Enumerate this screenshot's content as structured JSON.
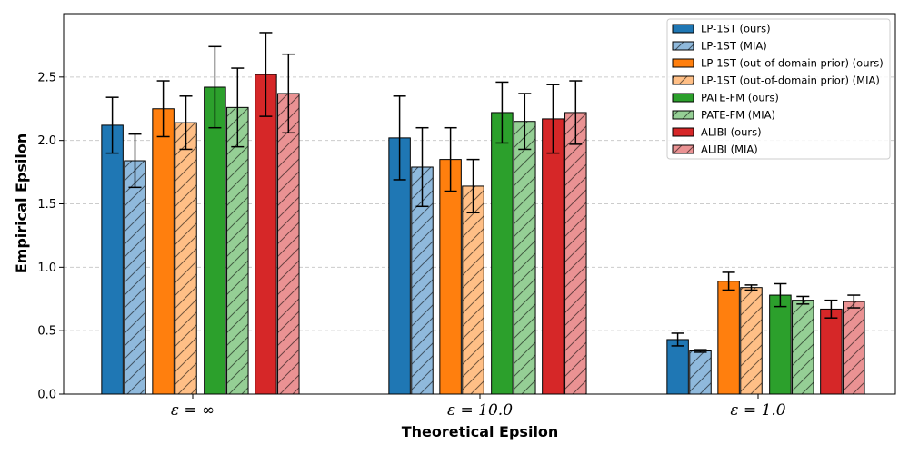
{
  "chart_data": {
    "type": "bar",
    "title": "",
    "xlabel": "Theoretical Epsilon",
    "ylabel": "Empirical Epsilon",
    "categories": [
      "ε = ∞",
      "ε = 10.0",
      "ε = 1.0"
    ],
    "ylim": [
      0,
      3.0
    ],
    "yticks": [
      0.0,
      0.5,
      1.0,
      1.5,
      2.0,
      2.5
    ],
    "ytick_labels": [
      "0.0",
      "0.5",
      "1.0",
      "1.5",
      "2.0",
      "2.5"
    ],
    "grid": true,
    "legend_position": "top-right",
    "series": [
      {
        "name": "LP-1ST (ours)",
        "color": "#1f77b4",
        "hatch": false,
        "values": [
          2.12,
          2.02,
          0.43
        ],
        "errors": [
          0.22,
          0.33,
          0.05
        ]
      },
      {
        "name": "LP-1ST (MIA)",
        "color": "#8fb9dc",
        "hatch": true,
        "values": [
          1.84,
          1.79,
          0.34
        ],
        "errors": [
          0.21,
          0.31,
          0.01
        ]
      },
      {
        "name": "LP-1ST (out-of-domain prior) (ours)",
        "color": "#ff7f0e",
        "hatch": false,
        "values": [
          2.25,
          1.85,
          0.89
        ],
        "errors": [
          0.22,
          0.25,
          0.07
        ]
      },
      {
        "name": "LP-1ST (out-of-domain prior) (MIA)",
        "color": "#ffbf86",
        "hatch": true,
        "values": [
          2.14,
          1.64,
          0.84
        ],
        "errors": [
          0.21,
          0.21,
          0.02
        ]
      },
      {
        "name": "PATE-FM (ours)",
        "color": "#2ca02c",
        "hatch": false,
        "values": [
          2.42,
          2.22,
          0.78
        ],
        "errors": [
          0.32,
          0.24,
          0.09
        ]
      },
      {
        "name": "PATE-FM (MIA)",
        "color": "#95cf95",
        "hatch": true,
        "values": [
          2.26,
          2.15,
          0.74
        ],
        "errors": [
          0.31,
          0.22,
          0.03
        ]
      },
      {
        "name": "ALIBI (ours)",
        "color": "#d62728",
        "hatch": false,
        "values": [
          2.52,
          2.17,
          0.67
        ],
        "errors": [
          0.33,
          0.27,
          0.07
        ]
      },
      {
        "name": "ALIBI (MIA)",
        "color": "#ea9293",
        "hatch": true,
        "values": [
          2.37,
          2.22,
          0.73
        ],
        "errors": [
          0.31,
          0.25,
          0.05
        ]
      }
    ]
  }
}
